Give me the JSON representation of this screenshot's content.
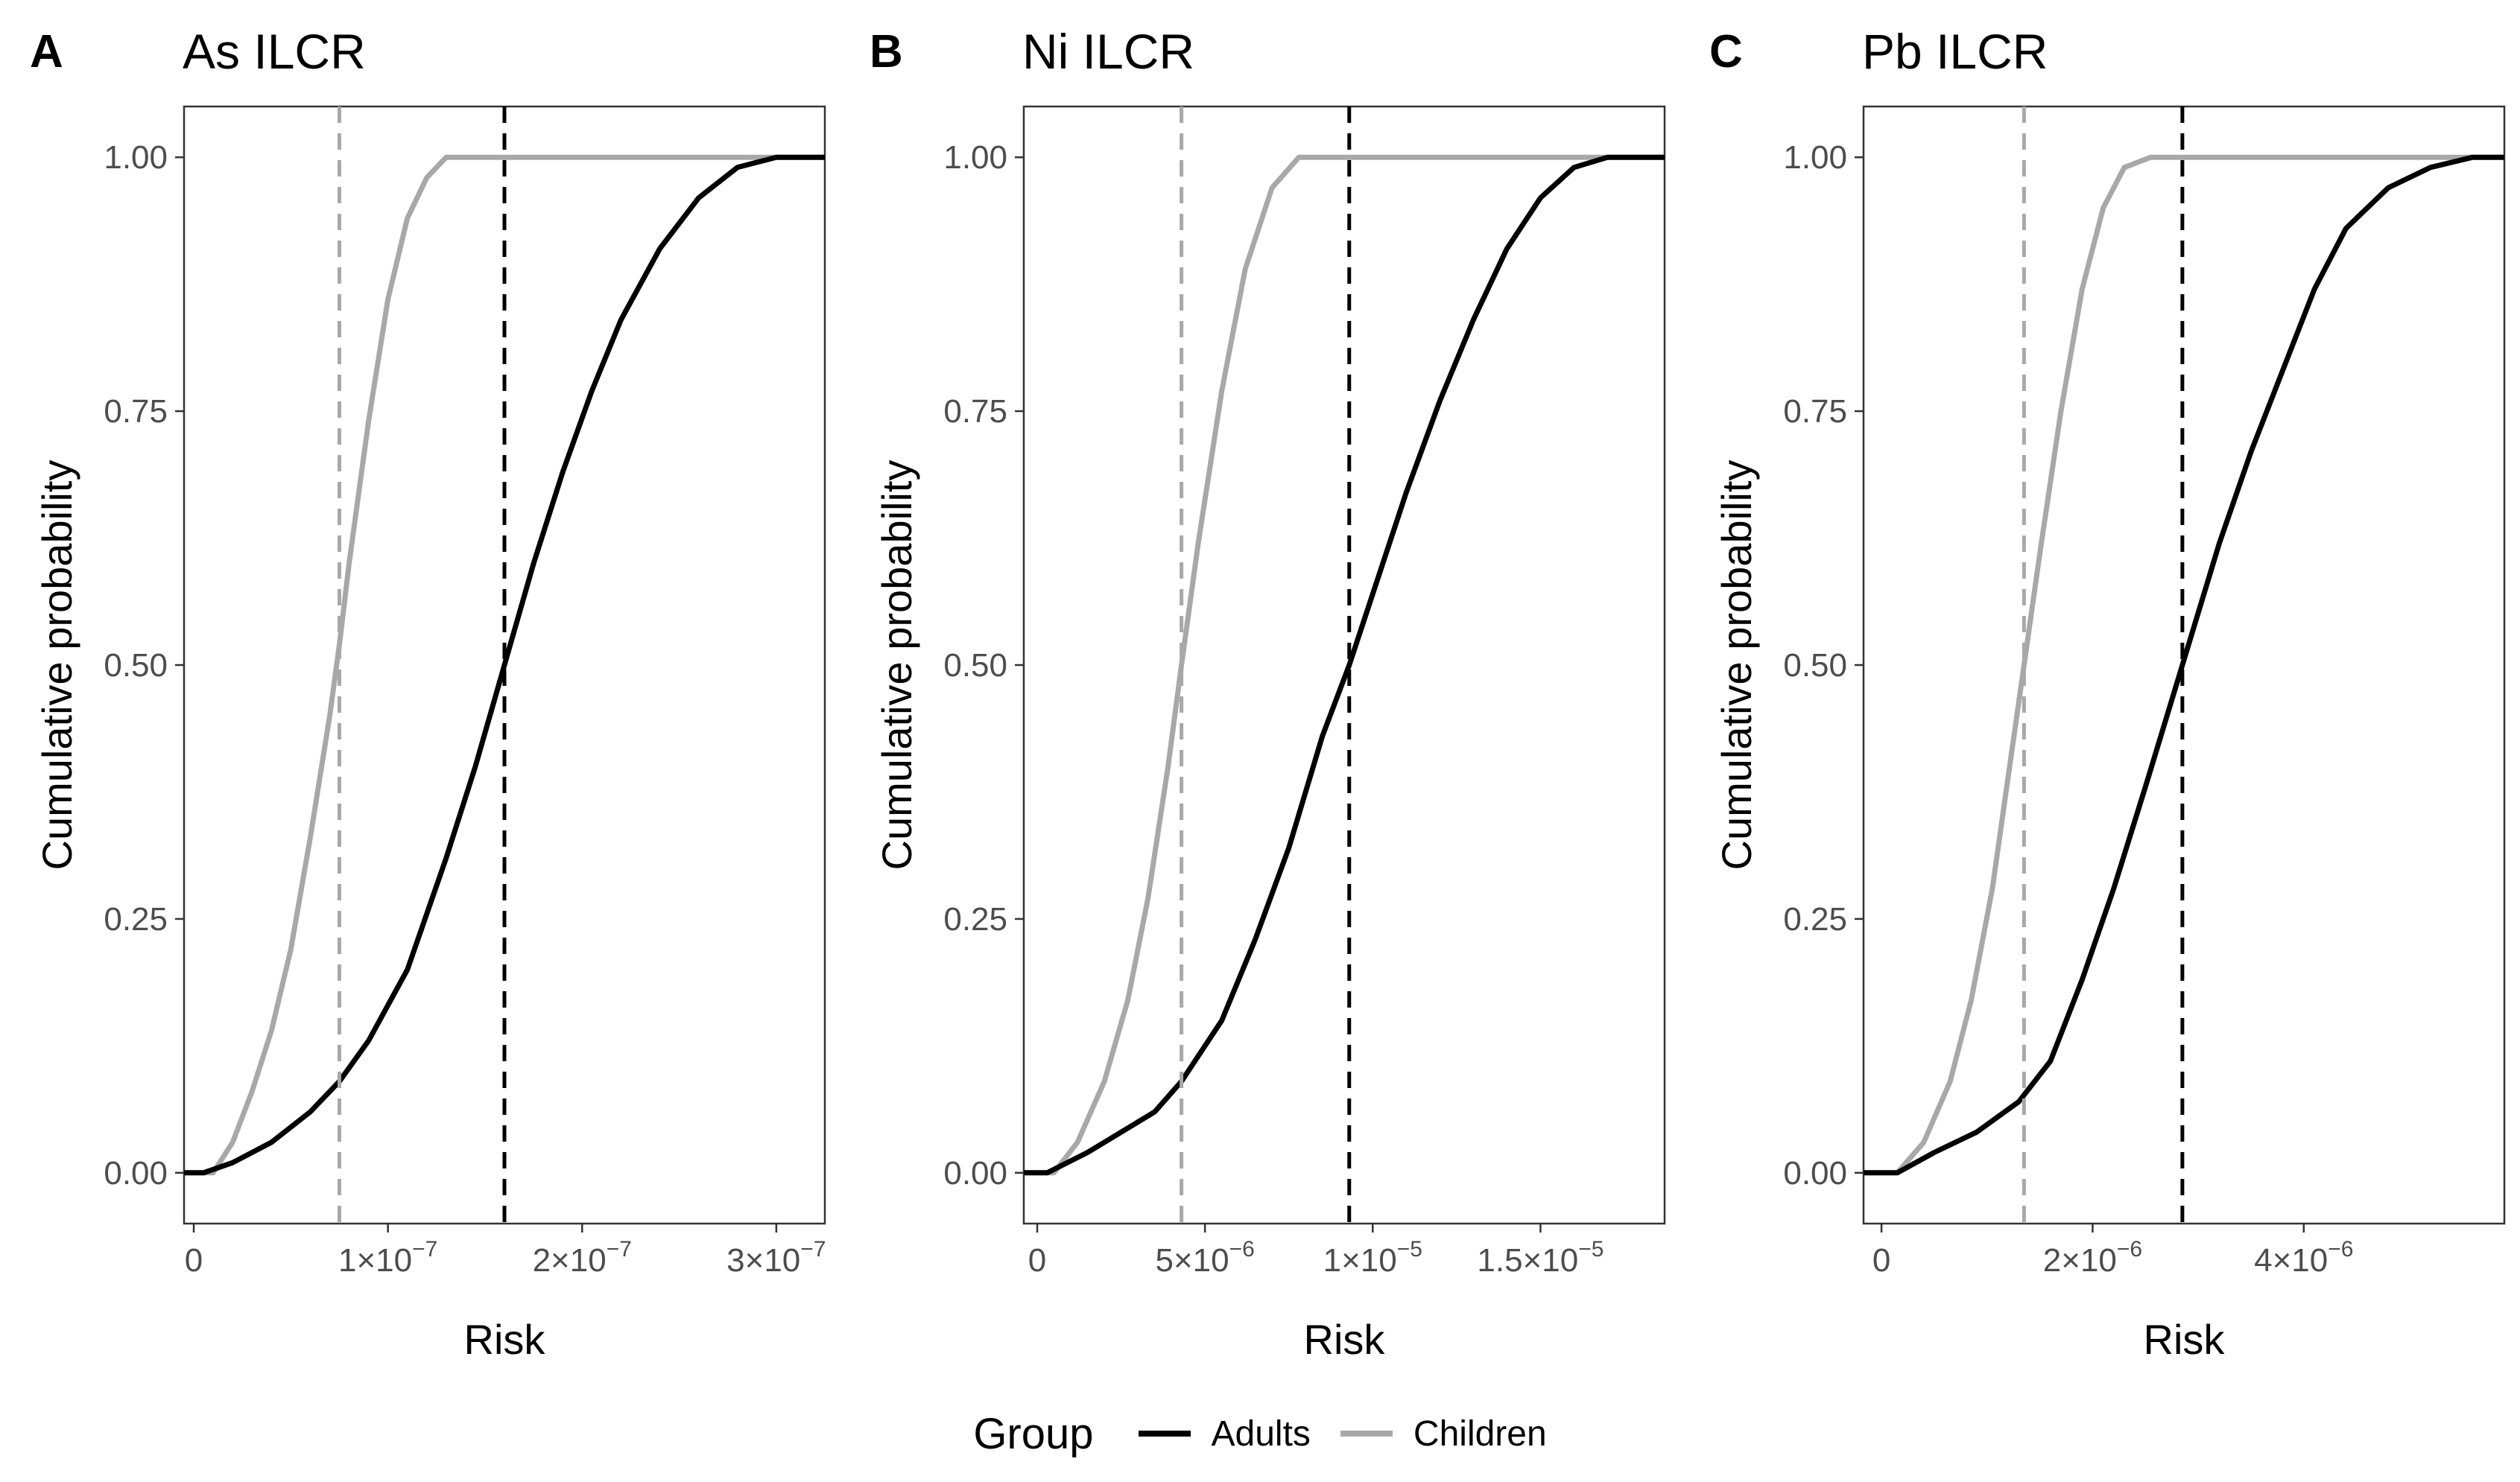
{
  "legend": {
    "title": "Group",
    "items": [
      {
        "label": "Adults",
        "color": "#000000"
      },
      {
        "label": "Children",
        "color": "#a8a8a8"
      }
    ]
  },
  "chart_data": [
    {
      "type": "line",
      "panel": "A",
      "title": "As ILCR",
      "xlabel": "Risk",
      "ylabel": "Cumulative probability",
      "xlim": [
        -5e-09,
        3.25e-07
      ],
      "ylim": [
        -0.05,
        1.05
      ],
      "yticks": [
        0,
        0.25,
        0.5,
        0.75,
        1.0
      ],
      "ytick_labels": [
        "0.00",
        "0.25",
        "0.50",
        "0.75",
        "1.00"
      ],
      "xticks": [
        {
          "value": 0,
          "mantissa": "0",
          "exponent": ""
        },
        {
          "value": 1e-07,
          "mantissa": "1×10",
          "exponent": "−7"
        },
        {
          "value": 2e-07,
          "mantissa": "2×10",
          "exponent": "−7"
        },
        {
          "value": 3e-07,
          "mantissa": "3×10",
          "exponent": "−7"
        }
      ],
      "grid": false,
      "series": [
        {
          "name": "Adults",
          "color": "#000000",
          "mean": 1.6e-07,
          "start": 5e-09,
          "end": 3.1e-07,
          "x": [
            -5e-09,
            5e-09,
            2e-08,
            4e-08,
            6e-08,
            7.5e-08,
            9e-08,
            1.1e-07,
            1.3e-07,
            1.45e-07,
            1.6e-07,
            1.75e-07,
            1.9e-07,
            2.05e-07,
            2.2e-07,
            2.4e-07,
            2.6e-07,
            2.8e-07,
            3e-07,
            3.1e-07,
            3.25e-07
          ],
          "y": [
            0,
            0,
            0.01,
            0.03,
            0.06,
            0.09,
            0.13,
            0.2,
            0.31,
            0.4,
            0.5,
            0.6,
            0.69,
            0.77,
            0.84,
            0.91,
            0.96,
            0.99,
            1.0,
            1.0,
            1.0
          ]
        },
        {
          "name": "Children",
          "color": "#a8a8a8",
          "mean": 7.5e-08,
          "start": 1e-08,
          "end": 1.35e-07,
          "x": [
            -5e-09,
            1e-08,
            2e-08,
            3e-08,
            4e-08,
            5e-08,
            6e-08,
            7e-08,
            7.5e-08,
            8e-08,
            9e-08,
            1e-07,
            1.1e-07,
            1.2e-07,
            1.3e-07,
            1.35e-07,
            3.25e-07
          ],
          "y": [
            0,
            0,
            0.03,
            0.08,
            0.14,
            0.22,
            0.33,
            0.45,
            0.52,
            0.6,
            0.74,
            0.86,
            0.94,
            0.98,
            1.0,
            1.0,
            1.0
          ]
        }
      ]
    },
    {
      "type": "line",
      "panel": "B",
      "title": "Ni ILCR",
      "xlabel": "Risk",
      "ylabel": "Cumulative probability",
      "xlim": [
        -4e-07,
        1.87e-05
      ],
      "ylim": [
        -0.05,
        1.05
      ],
      "yticks": [
        0,
        0.25,
        0.5,
        0.75,
        1.0
      ],
      "ytick_labels": [
        "0.00",
        "0.25",
        "0.50",
        "0.75",
        "1.00"
      ],
      "xticks": [
        {
          "value": 0,
          "mantissa": "0",
          "exponent": ""
        },
        {
          "value": 5e-06,
          "mantissa": "5×10",
          "exponent": "−6"
        },
        {
          "value": 1e-05,
          "mantissa": "1×10",
          "exponent": "−5"
        },
        {
          "value": 1.5e-05,
          "mantissa": "1.5×10",
          "exponent": "−5"
        }
      ],
      "grid": false,
      "series": [
        {
          "name": "Adults",
          "color": "#000000",
          "mean": 9.3e-06,
          "start": 3e-07,
          "end": 1.75e-05,
          "x": [
            -4e-07,
            3e-07,
            1.5e-06,
            2.5e-06,
            3.5e-06,
            4.3e-06,
            5.5e-06,
            6.5e-06,
            7.5e-06,
            8.5e-06,
            9.3e-06,
            1e-05,
            1.1e-05,
            1.2e-05,
            1.3e-05,
            1.4e-05,
            1.5e-05,
            1.6e-05,
            1.7e-05,
            1.75e-05,
            1.87e-05
          ],
          "y": [
            0,
            0,
            0.02,
            0.04,
            0.06,
            0.09,
            0.15,
            0.23,
            0.32,
            0.43,
            0.5,
            0.57,
            0.67,
            0.76,
            0.84,
            0.91,
            0.96,
            0.99,
            1.0,
            1.0,
            1.0
          ]
        },
        {
          "name": "Children",
          "color": "#a8a8a8",
          "mean": 4.3e-06,
          "start": 5e-07,
          "end": 8.4e-06,
          "x": [
            -4e-07,
            5e-07,
            1.2e-06,
            2e-06,
            2.7e-06,
            3.3e-06,
            3.9e-06,
            4.3e-06,
            4.8e-06,
            5.5e-06,
            6.2e-06,
            7e-06,
            7.8e-06,
            8.4e-06,
            1.87e-05
          ],
          "y": [
            0,
            0,
            0.03,
            0.09,
            0.17,
            0.27,
            0.4,
            0.5,
            0.62,
            0.77,
            0.89,
            0.97,
            1.0,
            1.0,
            1.0
          ]
        }
      ]
    },
    {
      "type": "line",
      "panel": "C",
      "title": "Pb ILCR",
      "xlabel": "Risk",
      "ylabel": "Cumulative probability",
      "xlim": [
        -1.7e-07,
        5.9e-06
      ],
      "ylim": [
        -0.05,
        1.05
      ],
      "yticks": [
        0,
        0.25,
        0.5,
        0.75,
        1.0
      ],
      "ytick_labels": [
        "0.00",
        "0.25",
        "0.50",
        "0.75",
        "1.00"
      ],
      "xticks": [
        {
          "value": 0,
          "mantissa": "0",
          "exponent": ""
        },
        {
          "value": 2e-06,
          "mantissa": "2×10",
          "exponent": "−6"
        },
        {
          "value": 4e-06,
          "mantissa": "4×10",
          "exponent": "−6"
        }
      ],
      "grid": false,
      "series": [
        {
          "name": "Adults",
          "color": "#000000",
          "mean": 2.85e-06,
          "start": 1.5e-07,
          "end": 5.6e-06,
          "x": [
            -1.7e-07,
            1.5e-07,
            5e-07,
            9e-07,
            1.3e-06,
            1.6e-06,
            1.9e-06,
            2.2e-06,
            2.5e-06,
            2.85e-06,
            3.2e-06,
            3.5e-06,
            3.8e-06,
            4.1e-06,
            4.4e-06,
            4.8e-06,
            5.2e-06,
            5.6e-06,
            5.9e-06
          ],
          "y": [
            0,
            0,
            0.02,
            0.04,
            0.07,
            0.11,
            0.19,
            0.28,
            0.38,
            0.5,
            0.62,
            0.71,
            0.79,
            0.87,
            0.93,
            0.97,
            0.99,
            1.0,
            1.0
          ]
        },
        {
          "name": "Children",
          "color": "#a8a8a8",
          "mean": 1.35e-06,
          "start": 1.5e-07,
          "end": 2.55e-06,
          "x": [
            -1.7e-07,
            1.5e-07,
            4e-07,
            6.5e-07,
            8.5e-07,
            1.05e-06,
            1.2e-06,
            1.35e-06,
            1.5e-06,
            1.7e-06,
            1.9e-06,
            2.1e-06,
            2.3e-06,
            2.55e-06,
            5.9e-06
          ],
          "y": [
            0,
            0,
            0.03,
            0.09,
            0.17,
            0.28,
            0.39,
            0.5,
            0.61,
            0.75,
            0.87,
            0.95,
            0.99,
            1.0,
            1.0
          ]
        }
      ]
    }
  ]
}
